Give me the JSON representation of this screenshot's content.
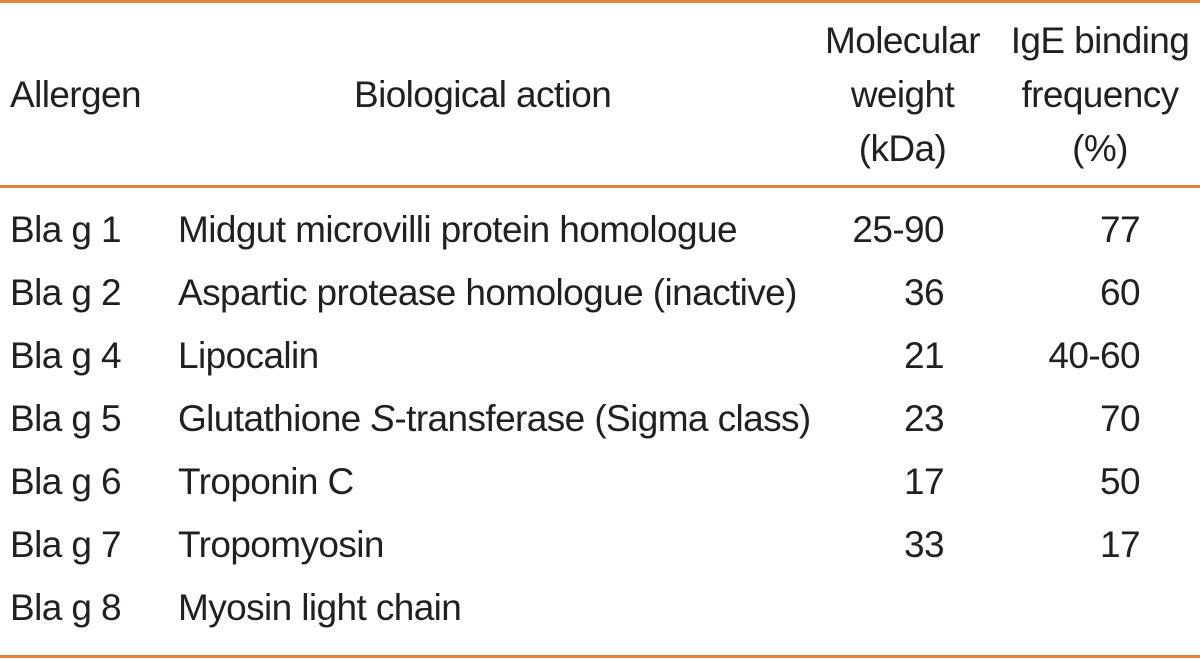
{
  "colors": {
    "rule": "#e8823a",
    "text": "#231f20"
  },
  "header": {
    "allergen": "Allergen",
    "action": "Biological action",
    "mw": [
      "Molecular",
      "weight",
      "(kDa)"
    ],
    "ige": [
      "IgE binding",
      "frequency",
      "(%)"
    ]
  },
  "rows": [
    {
      "allergen": "Bla g 1",
      "action": "Midgut microvilli protein homologue",
      "mw": "25-90",
      "ige": "77"
    },
    {
      "allergen": "Bla g 2",
      "action": "Aspartic protease homologue (inactive)",
      "mw": "36",
      "ige": "60"
    },
    {
      "allergen": "Bla g 4",
      "action": "Lipocalin",
      "mw": "21",
      "ige": "40-60"
    },
    {
      "allergen": "Bla g 5",
      "action_pre": "Glutathione ",
      "action_italic": "S",
      "action_post": "-transferase (Sigma class)",
      "mw": "23",
      "ige": "70"
    },
    {
      "allergen": "Bla g 6",
      "action": "Troponin C",
      "mw": "17",
      "ige": "50"
    },
    {
      "allergen": "Bla g 7",
      "action": "Tropomyosin",
      "mw": "33",
      "ige": "17"
    },
    {
      "allergen": "Bla g 8",
      "action": "Myosin light chain",
      "mw": "",
      "ige": ""
    }
  ]
}
